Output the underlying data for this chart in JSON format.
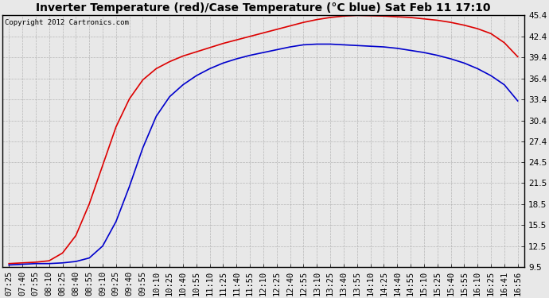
{
  "title": "Inverter Temperature (red)/Case Temperature (°C blue) Sat Feb 11 17:10",
  "copyright": "Copyright 2012 Cartronics.com",
  "background_color": "#e8e8e8",
  "plot_bg_color": "#e8e8e8",
  "grid_color": "#aaaaaa",
  "border_color": "#000000",
  "red_color": "#dd0000",
  "blue_color": "#0000cc",
  "yticks": [
    9.5,
    12.5,
    15.5,
    18.5,
    21.5,
    24.5,
    27.4,
    30.4,
    33.4,
    36.4,
    39.4,
    42.4,
    45.4
  ],
  "ylim": [
    9.5,
    45.4
  ],
  "x_labels": [
    "07:25",
    "07:40",
    "07:55",
    "08:10",
    "08:25",
    "08:40",
    "08:55",
    "09:10",
    "09:25",
    "09:40",
    "09:55",
    "10:10",
    "10:25",
    "10:40",
    "10:55",
    "11:10",
    "11:25",
    "11:40",
    "11:55",
    "12:10",
    "12:25",
    "12:40",
    "12:55",
    "13:10",
    "13:25",
    "13:40",
    "13:55",
    "14:10",
    "14:25",
    "14:40",
    "14:55",
    "15:10",
    "15:25",
    "15:40",
    "15:55",
    "16:10",
    "16:25",
    "16:41",
    "16:56"
  ],
  "red_values": [
    10.0,
    10.1,
    10.2,
    10.4,
    11.5,
    14.0,
    18.5,
    24.0,
    29.5,
    33.5,
    36.2,
    37.8,
    38.8,
    39.6,
    40.2,
    40.8,
    41.4,
    41.9,
    42.4,
    42.9,
    43.4,
    43.9,
    44.4,
    44.8,
    45.1,
    45.3,
    45.4,
    45.35,
    45.3,
    45.2,
    45.1,
    44.9,
    44.7,
    44.4,
    44.0,
    43.5,
    42.8,
    41.5,
    39.5
  ],
  "blue_values": [
    9.8,
    9.9,
    10.0,
    10.0,
    10.1,
    10.3,
    10.8,
    12.5,
    16.0,
    21.0,
    26.5,
    31.0,
    33.8,
    35.5,
    36.8,
    37.8,
    38.6,
    39.2,
    39.7,
    40.1,
    40.5,
    40.9,
    41.2,
    41.3,
    41.3,
    41.2,
    41.1,
    41.0,
    40.9,
    40.7,
    40.4,
    40.1,
    39.7,
    39.2,
    38.6,
    37.8,
    36.8,
    35.5,
    33.2
  ],
  "title_fontsize": 10,
  "tick_fontsize": 7.5,
  "copyright_fontsize": 6.5,
  "linewidth": 1.2
}
